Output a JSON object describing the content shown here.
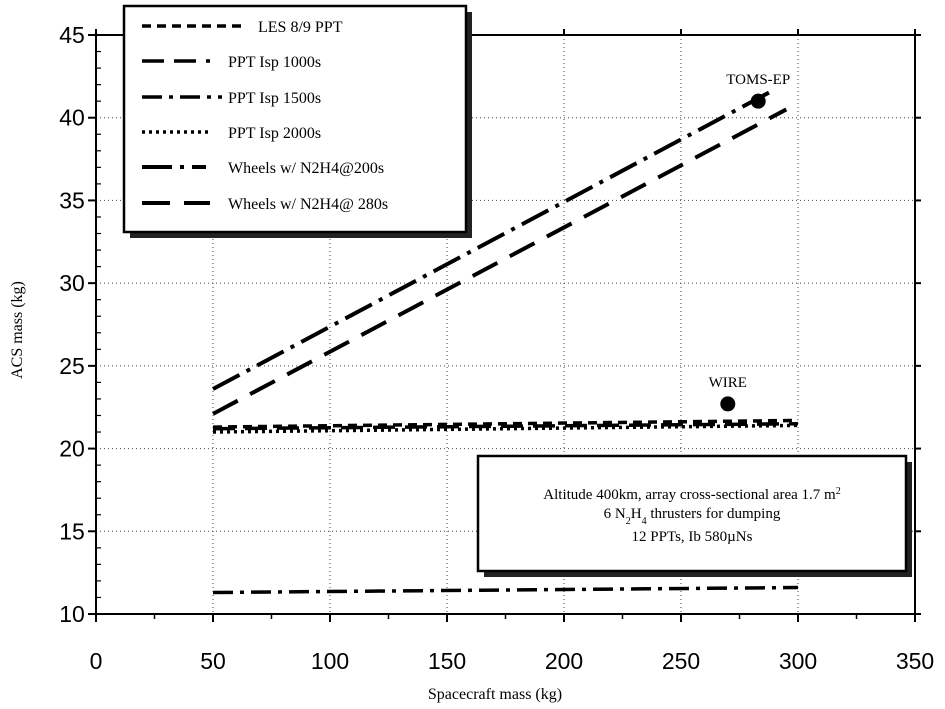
{
  "chart_data": {
    "type": "line",
    "xlabel": "Spacecraft mass (kg)",
    "ylabel": "ACS mass (kg)",
    "xlim": [
      0,
      350
    ],
    "ylim": [
      10,
      45
    ],
    "x_ticks": [
      "0",
      "50",
      "100",
      "150",
      "200",
      "250",
      "300",
      "350"
    ],
    "y_ticks": [
      "10",
      "15",
      "20",
      "25",
      "30",
      "35",
      "40",
      "45"
    ],
    "grid": true,
    "legend_position": "top-left",
    "series": [
      {
        "name": "LES 8/9 PPT",
        "dash": "short",
        "x": [
          50,
          300
        ],
        "y": [
          21.3,
          21.7
        ]
      },
      {
        "name": "PPT Isp 1000s",
        "dash": "long",
        "x": [
          50,
          300
        ],
        "y": [
          21.2,
          21.5
        ]
      },
      {
        "name": "PPT Isp 1500s",
        "dash": "dashdot",
        "x": [
          50,
          300
        ],
        "y": [
          11.3,
          11.6
        ]
      },
      {
        "name": "PPT Isp 2000s",
        "dash": "dotted",
        "x": [
          50,
          300
        ],
        "y": [
          21.0,
          21.4
        ]
      },
      {
        "name": "Wheels w/ N2H4@200s",
        "dash": "longdashdot",
        "x": [
          50,
          290
        ],
        "y": [
          23.6,
          41.7
        ]
      },
      {
        "name": "Wheels w/ N2H4@ 280s",
        "dash": "longdash",
        "x": [
          50,
          295
        ],
        "y": [
          22.1,
          40.5
        ]
      }
    ],
    "points": [
      {
        "label": "TOMS-EP",
        "x": 283,
        "y": 41.0
      },
      {
        "label": "WIRE",
        "x": 270,
        "y": 22.7
      }
    ],
    "note": {
      "line1": "Altitude 400km, array cross-sectional area 1.7 m",
      "line1_sup": "2",
      "line2_a": "6 N",
      "line2_sub1": "2",
      "line2_b": "H",
      "line2_sub2": "4",
      "line2_c": " thrusters for dumping",
      "line3": "12 PPTs, Ib 580µNs"
    }
  }
}
